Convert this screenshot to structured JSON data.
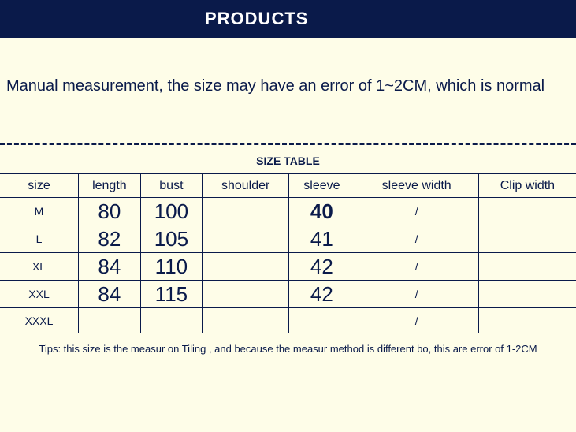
{
  "header": {
    "title": "PRODUCTS"
  },
  "subtitle": "Manual measurement, the size may have an error of 1~2CM, which is normal",
  "table": {
    "title": "SIZE TABLE",
    "columns": [
      "size",
      "length",
      "bust",
      "shoulder",
      "sleeve",
      "sleeve width",
      "Clip width"
    ],
    "rows": [
      {
        "size": "M",
        "length": "80",
        "bust": "100",
        "shoulder": "",
        "sleeve": "40",
        "sleeve_bold": true,
        "sleeve_width": "/",
        "clip_width": ""
      },
      {
        "size": "L",
        "length": "82",
        "bust": "105",
        "shoulder": "",
        "sleeve": "41",
        "sleeve_bold": false,
        "sleeve_width": "/",
        "clip_width": ""
      },
      {
        "size": "XL",
        "length": "84",
        "bust": "110",
        "shoulder": "",
        "sleeve": "42",
        "sleeve_bold": false,
        "sleeve_width": "/",
        "clip_width": ""
      },
      {
        "size": "XXL",
        "length": "84",
        "bust": "115",
        "shoulder": "",
        "sleeve": "42",
        "sleeve_bold": false,
        "sleeve_width": "/",
        "clip_width": ""
      },
      {
        "size": "XXXL",
        "length": "",
        "bust": "",
        "shoulder": "",
        "sleeve": "",
        "sleeve_bold": false,
        "sleeve_width": "/",
        "clip_width": ""
      }
    ]
  },
  "footer": "Tips: this size is the measur on Tiling , and because the measur method is different bo, this are error of 1-2CM",
  "colors": {
    "background": "#fefde8",
    "primary": "#0a1a4a",
    "header_text": "#ffffff"
  }
}
